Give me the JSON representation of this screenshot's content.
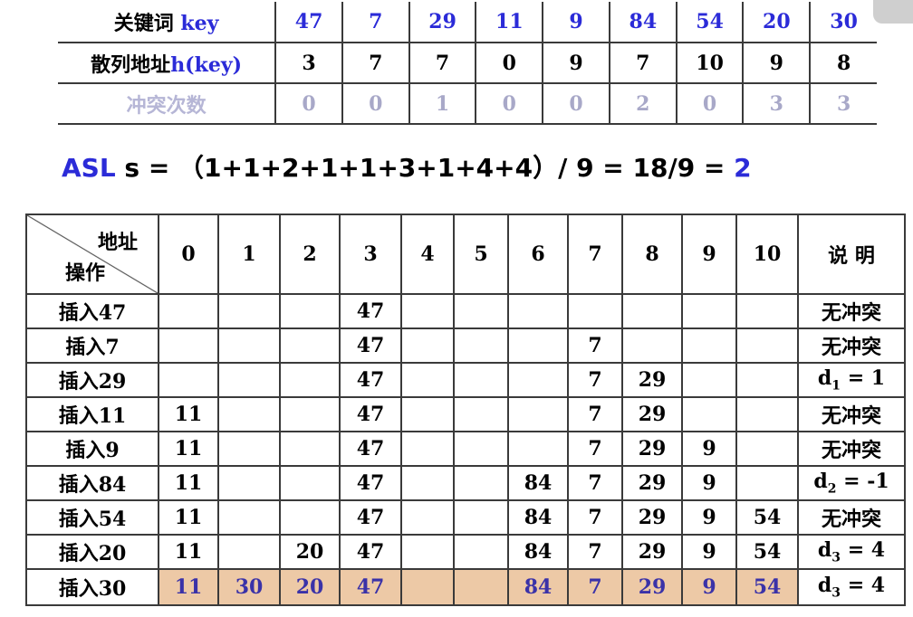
{
  "hash_table": {
    "key_label": "关键词",
    "key_label_suffix": "key",
    "addr_label": "散列地址",
    "addr_label_suffix": "h(key)",
    "collision_label": "冲突次数",
    "keys": [
      "47",
      "7",
      "29",
      "11",
      "9",
      "84",
      "54",
      "20",
      "30"
    ],
    "addresses": [
      "3",
      "7",
      "7",
      "0",
      "9",
      "7",
      "10",
      "9",
      "8"
    ],
    "collisions": [
      "0",
      "0",
      "1",
      "0",
      "0",
      "2",
      "0",
      "3",
      "3"
    ]
  },
  "asl": {
    "label": "ASL",
    "expression": " s = （1+1+2+1+1+3+1+4+4）/ 9 = 18/9 = ",
    "result": "2"
  },
  "op_table": {
    "header_addr": "地址",
    "header_op": "操作",
    "columns": [
      "0",
      "1",
      "2",
      "3",
      "4",
      "5",
      "6",
      "7",
      "8",
      "9",
      "10"
    ],
    "note_header": "说 明",
    "rows": [
      {
        "op": "插入47",
        "cells": [
          "",
          "",
          "",
          "47",
          "",
          "",
          "",
          "",
          "",
          "",
          ""
        ],
        "note": "无冲突"
      },
      {
        "op": "插入7",
        "cells": [
          "",
          "",
          "",
          "47",
          "",
          "",
          "",
          "7",
          "",
          "",
          ""
        ],
        "note": "无冲突"
      },
      {
        "op": "插入29",
        "cells": [
          "",
          "",
          "",
          "47",
          "",
          "",
          "",
          "7",
          "29",
          "",
          ""
        ],
        "note": "d1 = 1"
      },
      {
        "op": "插入11",
        "cells": [
          "11",
          "",
          "",
          "47",
          "",
          "",
          "",
          "7",
          "29",
          "",
          ""
        ],
        "note": "无冲突"
      },
      {
        "op": "插入9",
        "cells": [
          "11",
          "",
          "",
          "47",
          "",
          "",
          "",
          "7",
          "29",
          "9",
          ""
        ],
        "note": "无冲突"
      },
      {
        "op": "插入84",
        "cells": [
          "11",
          "",
          "",
          "47",
          "",
          "",
          "84",
          "7",
          "29",
          "9",
          ""
        ],
        "note": "d2 = -1"
      },
      {
        "op": "插入54",
        "cells": [
          "11",
          "",
          "",
          "47",
          "",
          "",
          "84",
          "7",
          "29",
          "9",
          "54"
        ],
        "note": "无冲突"
      },
      {
        "op": "插入20",
        "cells": [
          "11",
          "",
          "20",
          "47",
          "",
          "",
          "84",
          "7",
          "29",
          "9",
          "54"
        ],
        "note": "d3 = 4"
      },
      {
        "op": "插入30",
        "cells": [
          "11",
          "30",
          "20",
          "47",
          "",
          "",
          "84",
          "7",
          "29",
          "9",
          "54"
        ],
        "note": "d3 = 4"
      }
    ]
  },
  "colors": {
    "accent_blue": "#2b2bd8",
    "highlight_bg": "#edc9a6",
    "faint_text": "#a8a8c8"
  }
}
